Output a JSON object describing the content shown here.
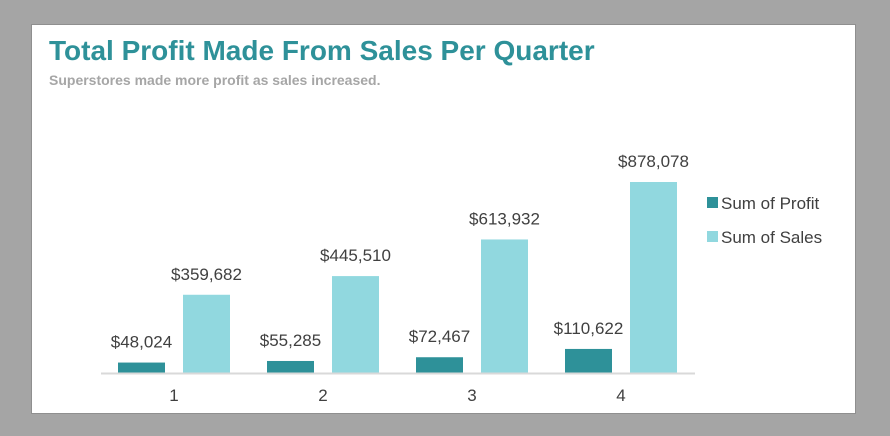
{
  "colors": {
    "profit": "#2e9199",
    "sales": "#91d8df",
    "axis": "#d9d9d9",
    "title": "#2e9199",
    "subtitle": "#a6a6a6"
  },
  "chart_data": {
    "type": "bar",
    "title": "Total Profit Made From Sales Per Quarter",
    "subtitle": "Superstores made more profit as sales increased.",
    "categories": [
      "1",
      "2",
      "3",
      "4"
    ],
    "series": [
      {
        "name": "Sum of Profit",
        "values": [
          48024,
          55285,
          72467,
          110622
        ],
        "labels": [
          "$48,024",
          "$55,285",
          "$72,467",
          "$110,622"
        ]
      },
      {
        "name": "Sum of Sales",
        "values": [
          359682,
          445510,
          613932,
          878078
        ],
        "labels": [
          "$359,682",
          "$445,510",
          "$613,932",
          "$878,078"
        ]
      }
    ],
    "ylim": [
      0,
      878078
    ],
    "grid": false,
    "legend": "right"
  }
}
